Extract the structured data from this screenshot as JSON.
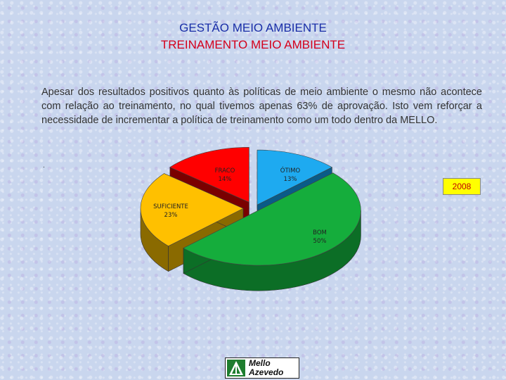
{
  "header": {
    "title": "GESTÃO MEIO AMBIENTE",
    "subtitle": "TREINAMENTO MEIO AMBIENTE"
  },
  "body": {
    "paragraph": "Apesar dos resultados positivos quanto às políticas de meio ambiente o mesmo não acontece com relação ao treinamento, no qual tivemos apenas 63% de aprovação. Isto vem reforçar a necessidade de incrementar a política de treinamento como um todo dentro da MELLO.",
    "marker": "."
  },
  "chart_data": {
    "type": "pie",
    "title": "",
    "legend": "2008",
    "slices": [
      {
        "label": "ÓTIMO",
        "value": 13,
        "value_label": "13%",
        "color": "#1eaaf0",
        "side_color": "#0a5b87"
      },
      {
        "label": "BOM",
        "value": 50,
        "value_label": "50%",
        "color": "#15ad3c",
        "side_color": "#0c6e26"
      },
      {
        "label": "SUFICIENTE",
        "value": 23,
        "value_label": "23%",
        "color": "#ffc000",
        "side_color": "#8a6a00"
      },
      {
        "label": "FRACO",
        "value": 14,
        "value_label": "14%",
        "color": "#ff0000",
        "side_color": "#7a0000"
      }
    ]
  },
  "logo": {
    "line1": "Mello",
    "line2": "Azevedo",
    "color": "#1e7d2e"
  }
}
